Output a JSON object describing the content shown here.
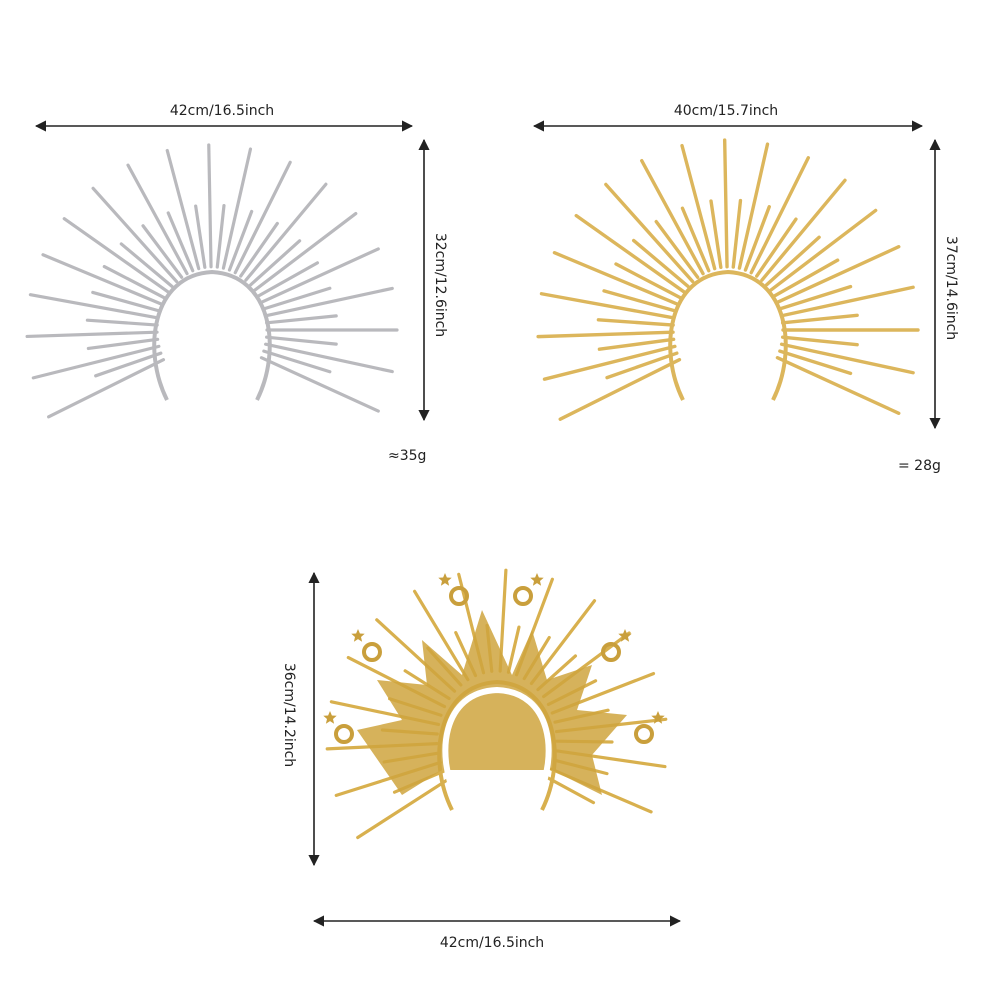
{
  "products": [
    {
      "width": "42cm/16.5inch",
      "height": "32cm/12.6inch",
      "weight": "≈35g"
    },
    {
      "width": "40cm/15.7inch",
      "height": "37cm/14.6inch",
      "weight": "= 28g"
    },
    {
      "width": "42cm/16.5inch",
      "height": "36cm/14.2inch"
    }
  ]
}
